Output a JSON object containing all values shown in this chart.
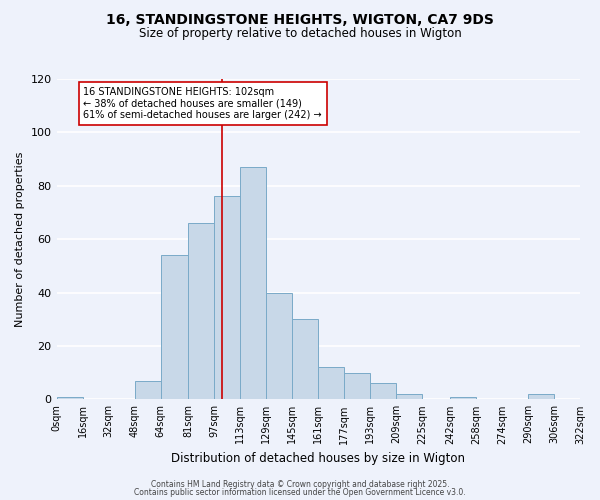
{
  "title": "16, STANDINGSTONE HEIGHTS, WIGTON, CA7 9DS",
  "subtitle": "Size of property relative to detached houses in Wigton",
  "xlabel": "Distribution of detached houses by size in Wigton",
  "ylabel": "Number of detached properties",
  "bar_color": "#c8d8e8",
  "bar_edge_color": "#7aaac8",
  "background_color": "#eef2fb",
  "grid_color": "#ffffff",
  "bin_edges": [
    0,
    16,
    32,
    48,
    64,
    81,
    97,
    113,
    129,
    145,
    161,
    177,
    193,
    209,
    225,
    242,
    258,
    274,
    290,
    306,
    322
  ],
  "bin_labels": [
    "0sqm",
    "16sqm",
    "32sqm",
    "48sqm",
    "64sqm",
    "81sqm",
    "97sqm",
    "113sqm",
    "129sqm",
    "145sqm",
    "161sqm",
    "177sqm",
    "193sqm",
    "209sqm",
    "225sqm",
    "242sqm",
    "258sqm",
    "274sqm",
    "290sqm",
    "306sqm",
    "322sqm"
  ],
  "counts": [
    1,
    0,
    0,
    7,
    54,
    66,
    76,
    87,
    40,
    30,
    12,
    10,
    6,
    2,
    0,
    1,
    0,
    0,
    2,
    0
  ],
  "vline_x": 102,
  "vline_color": "#cc0000",
  "annotation_text": "16 STANDINGSTONE HEIGHTS: 102sqm\n← 38% of detached houses are smaller (149)\n61% of semi-detached houses are larger (242) →",
  "annotation_box_color": "#ffffff",
  "annotation_box_edge": "#cc0000",
  "ylim": [
    0,
    120
  ],
  "yticks": [
    0,
    20,
    40,
    60,
    80,
    100,
    120
  ],
  "footer1": "Contains HM Land Registry data © Crown copyright and database right 2025.",
  "footer2": "Contains public sector information licensed under the Open Government Licence v3.0.",
  "title_fontsize": 10,
  "subtitle_fontsize": 8.5,
  "xlabel_fontsize": 8.5,
  "ylabel_fontsize": 8,
  "tick_fontsize": 7,
  "annotation_fontsize": 7,
  "footer_fontsize": 5.5
}
